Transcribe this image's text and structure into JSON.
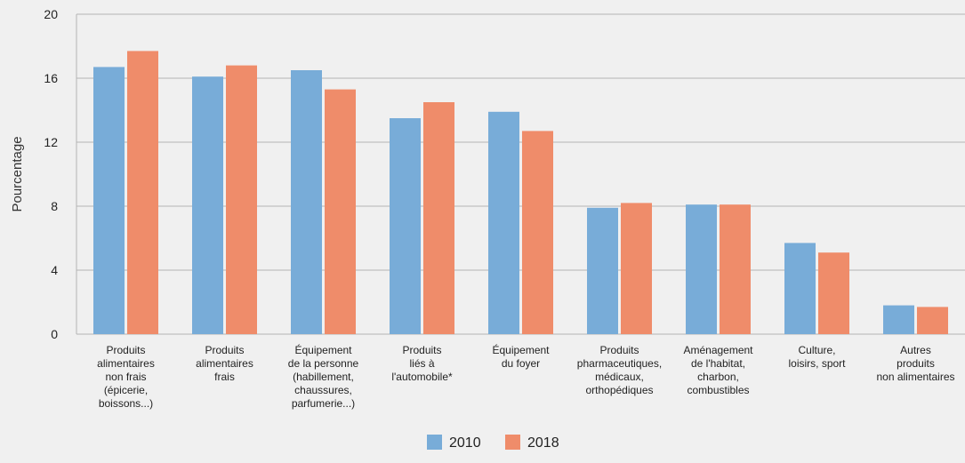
{
  "chart_data": {
    "type": "bar",
    "title": "",
    "xlabel": "",
    "ylabel": "Pourcentage",
    "ylim": [
      0,
      20
    ],
    "yticks": [
      0,
      4,
      8,
      12,
      16,
      20
    ],
    "grid": true,
    "legend_placement": "bottom-center",
    "categories": [
      "Produits alimentaires non frais (épicerie, boissons...)",
      "Produits alimentaires frais",
      "Équipement de la personne (habillement, chaussures, parfumerie...)",
      "Produits liés à l'automobile*",
      "Équipement du foyer",
      "Produits pharmaceutiques, médicaux, orthopédiques",
      "Aménagement de l'habitat, charbon, combustibles",
      "Culture, loisirs, sport",
      "Autres produits non alimentaires"
    ],
    "category_lines": [
      [
        "Produits",
        "alimentaires",
        "non frais",
        "(épicerie,",
        "boissons...)"
      ],
      [
        "Produits",
        "alimentaires",
        "frais"
      ],
      [
        "Équipement",
        "de la personne",
        "(habillement,",
        "chaussures,",
        "parfumerie...)"
      ],
      [
        "Produits",
        "liés à",
        "l'automobile*"
      ],
      [
        "Équipement",
        "du foyer"
      ],
      [
        "Produits",
        "pharmaceutiques,",
        "médicaux,",
        "orthopédiques"
      ],
      [
        "Aménagement",
        "de l'habitat,",
        "charbon,",
        "combustibles"
      ],
      [
        "Culture,",
        "loisirs, sport"
      ],
      [
        "Autres",
        "produits",
        "non alimentaires"
      ]
    ],
    "series": [
      {
        "name": "2010",
        "color": "#78acd8",
        "values": [
          16.7,
          16.1,
          16.5,
          13.5,
          13.9,
          7.9,
          8.1,
          5.7,
          1.8
        ]
      },
      {
        "name": "2018",
        "color": "#ef8c6a",
        "values": [
          17.7,
          16.8,
          15.3,
          14.5,
          12.7,
          8.2,
          8.1,
          5.1,
          1.7
        ]
      }
    ]
  }
}
